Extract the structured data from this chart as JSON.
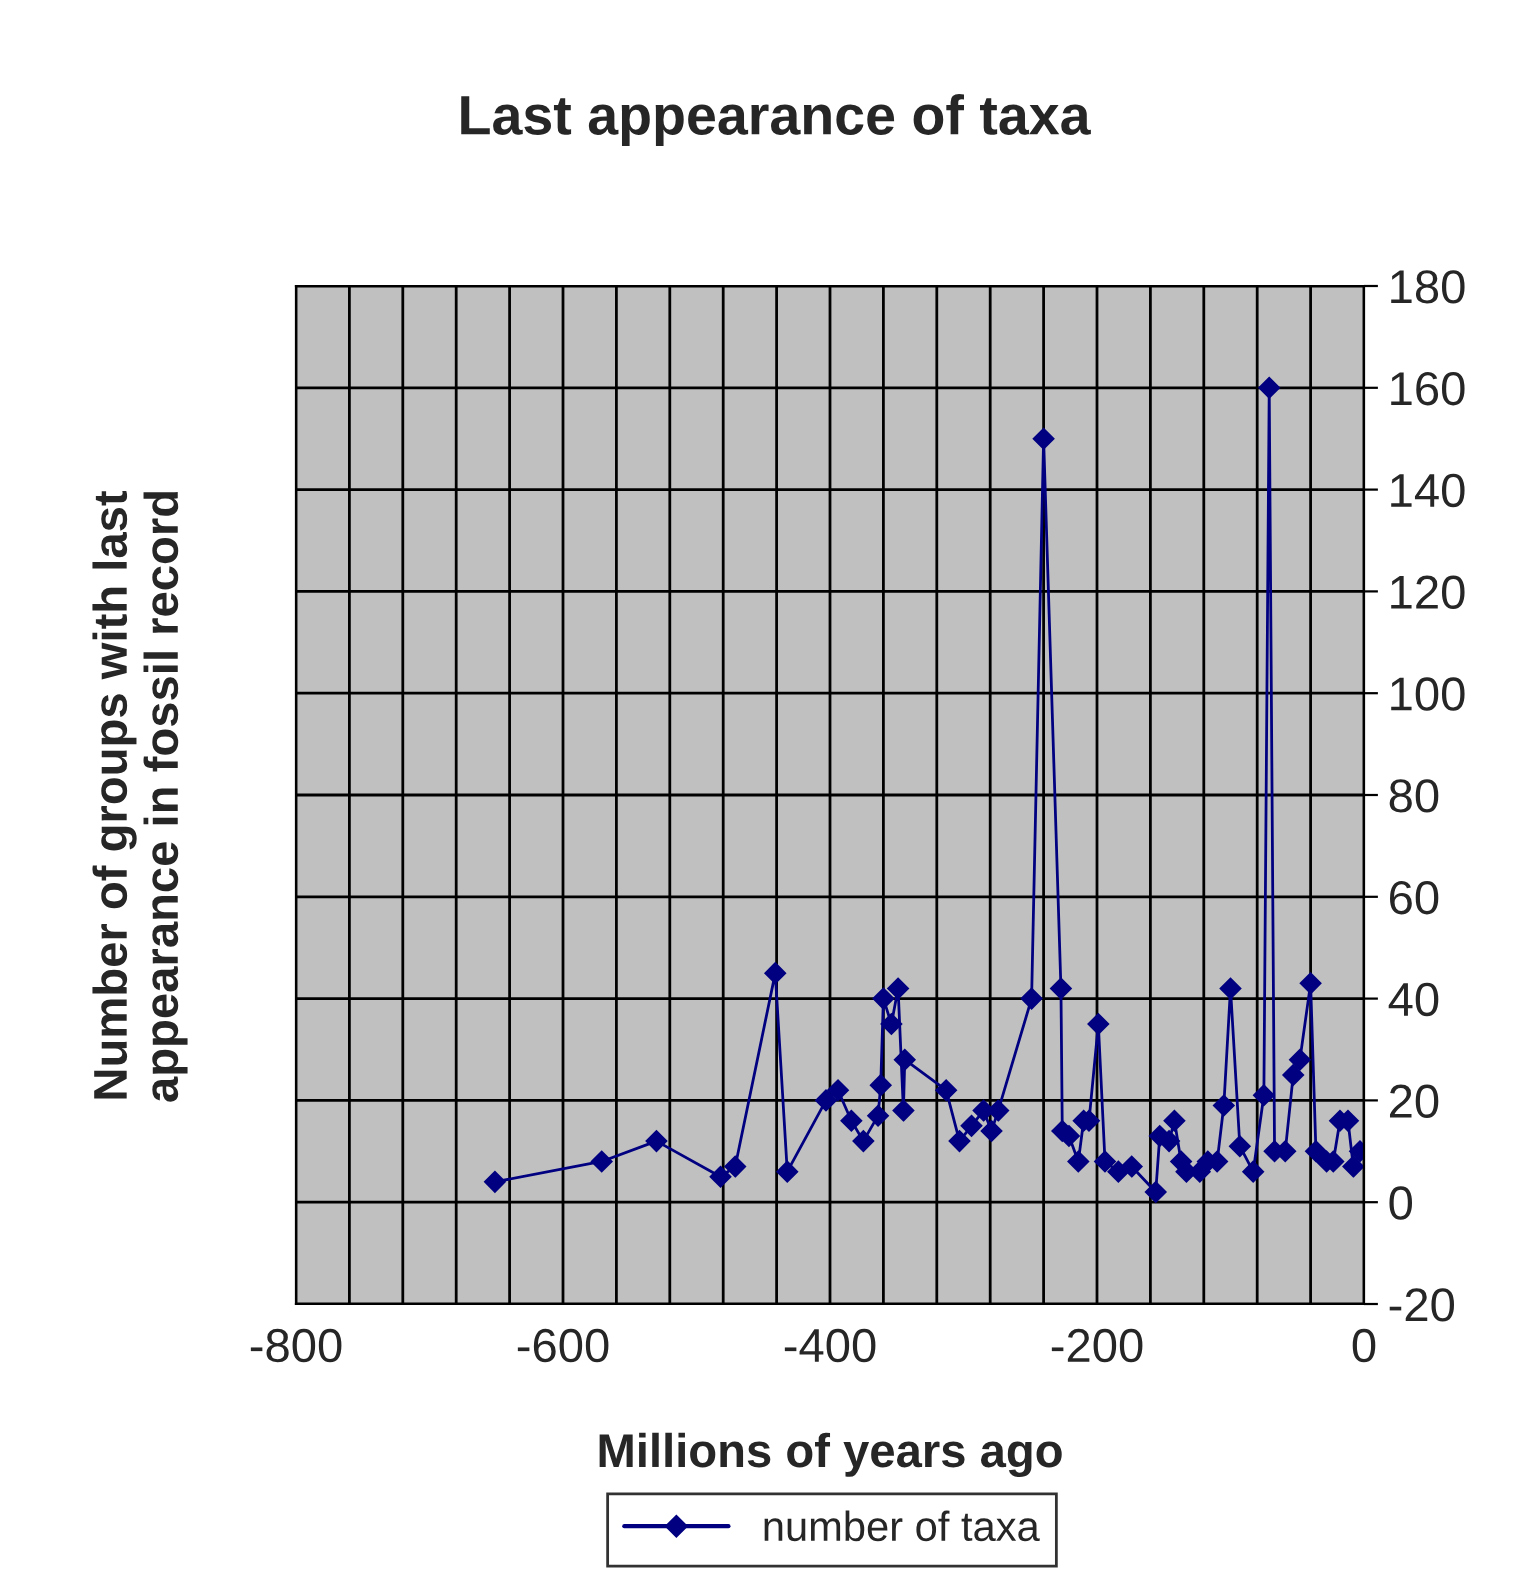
{
  "chart_data": {
    "type": "line",
    "title": "Last appearance of taxa",
    "xlabel": "Millions of years ago",
    "ylabel": "Number of groups with last\nappearance in fossil record",
    "series": [
      {
        "name": "number of taxa",
        "color": "#000080",
        "x": [
          -651,
          -571,
          -530,
          -482,
          -471,
          -441,
          -432,
          -403,
          -394,
          -384,
          -375,
          -364,
          -362,
          -360,
          -354,
          -349,
          -345,
          -344,
          -313,
          -303,
          -294,
          -285,
          -279,
          -274,
          -249,
          -240,
          -227,
          -226,
          -221,
          -214,
          -210,
          -206,
          -199,
          -194,
          -184,
          -174,
          -156,
          -153,
          -146,
          -142,
          -137,
          -133,
          -123,
          -117,
          -110,
          -105,
          -100,
          -93,
          -83,
          -75,
          -71,
          -67,
          -59,
          -53,
          -48,
          -40,
          -36,
          -28,
          -23,
          -18,
          -12,
          -8,
          -3
        ],
        "values": [
          4,
          8,
          12,
          5,
          7,
          45,
          6,
          20,
          22,
          16,
          12,
          17,
          23,
          40,
          35,
          42,
          18,
          28,
          22,
          12,
          15,
          18,
          14,
          18,
          40,
          150,
          42,
          14,
          13,
          8,
          16,
          16,
          35,
          8,
          6,
          7,
          2,
          13,
          12,
          16,
          8,
          6,
          6,
          8,
          8,
          19,
          42,
          11,
          6,
          21,
          160,
          10,
          10,
          25,
          28,
          43,
          10,
          8,
          8,
          16,
          16,
          7,
          10
        ]
      }
    ],
    "xlim": [
      -800,
      0
    ],
    "xticks": [
      -800,
      -600,
      -400,
      -200,
      0
    ],
    "ylim": [
      -20,
      180
    ],
    "yticks": [
      -20,
      0,
      20,
      40,
      60,
      80,
      100,
      120,
      140,
      160,
      180
    ],
    "grid": true,
    "legend": "bottom",
    "marker": "diamond",
    "line_style": "solid"
  }
}
